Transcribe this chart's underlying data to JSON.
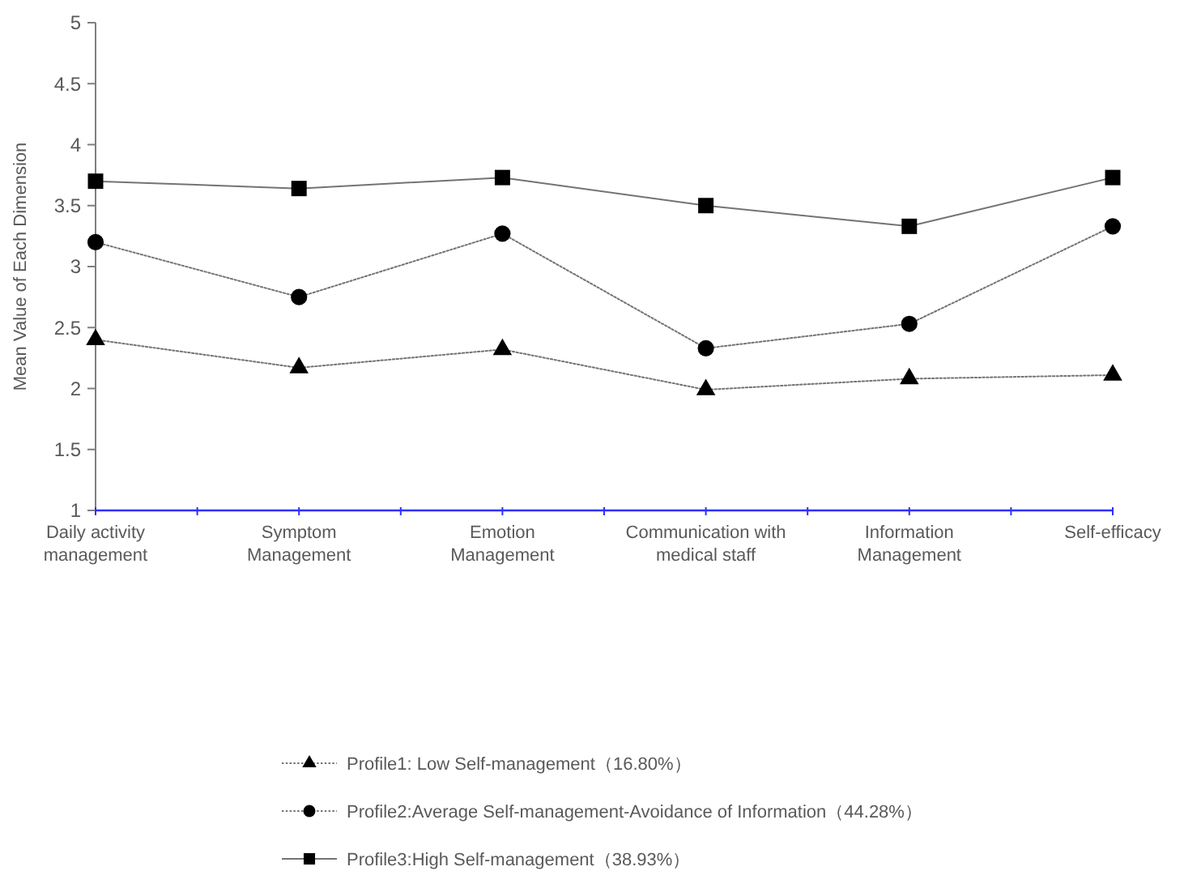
{
  "chart_data": {
    "type": "line",
    "ylabel": "Mean Value of Each Dimension",
    "categories": [
      "Daily activity management",
      "Symptom Management",
      "Emotion Management",
      "Communication with medical staff",
      "Information Management",
      "Self-efficacy"
    ],
    "series": [
      {
        "name": "Profile1: Low Self-management（16.80%）",
        "color": "#000000",
        "marker": "triangle",
        "line_style": "dotted",
        "values": [
          2.4,
          2.17,
          2.32,
          1.99,
          2.08,
          2.11
        ]
      },
      {
        "name": "Profile2:Average Self-management-Avoidance of Information（44.28%）",
        "color": "#000000",
        "marker": "circle",
        "line_style": "dotted",
        "values": [
          3.2,
          2.75,
          3.27,
          2.33,
          2.53,
          3.33
        ]
      },
      {
        "name": "Profile3:High Self-management（38.93%）",
        "color": "#000000",
        "marker": "square",
        "line_style": "solid",
        "values": [
          3.7,
          3.64,
          3.73,
          3.5,
          3.33,
          3.73
        ]
      }
    ],
    "ylim": [
      1,
      5
    ],
    "yticks": [
      1,
      1.5,
      2,
      2.5,
      3,
      3.5,
      4,
      4.5,
      5
    ],
    "legend": "bottom"
  }
}
